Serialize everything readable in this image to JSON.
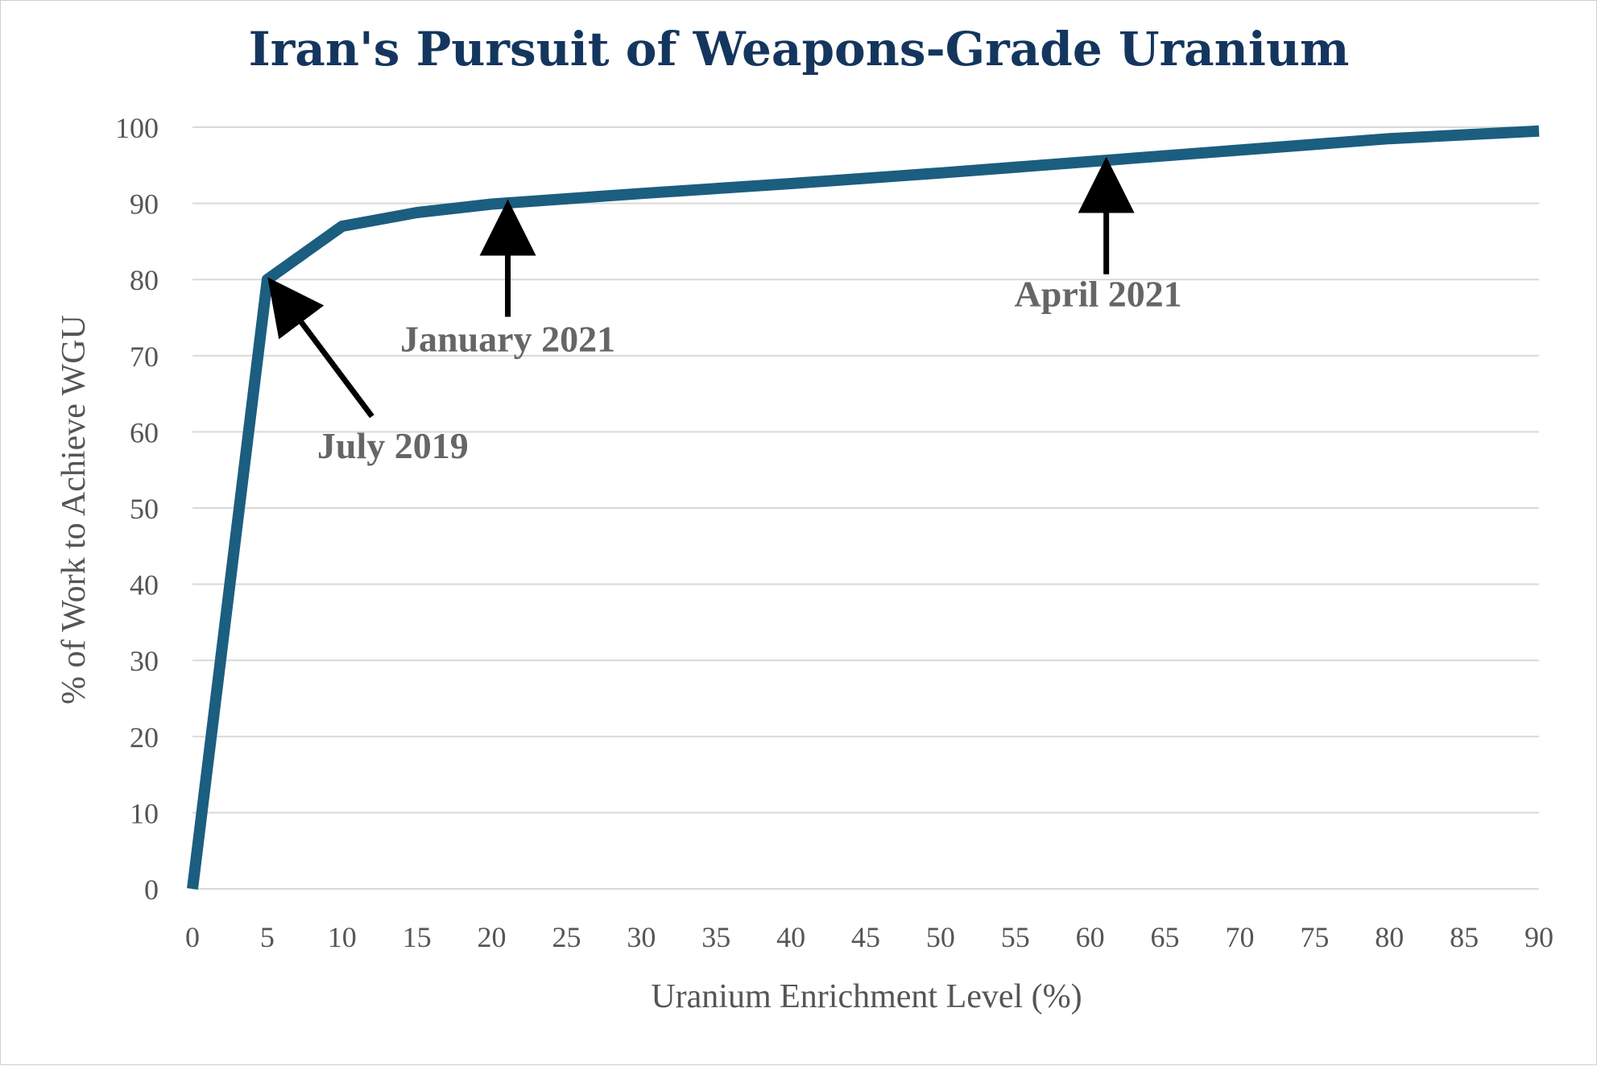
{
  "chart_data": {
    "type": "line",
    "title": "Iran's Pursuit of Weapons-Grade Uranium",
    "xlabel": "Uranium Enrichment Level (%)",
    "ylabel": "% of Work to Achieve WGU",
    "xlim": [
      0,
      90
    ],
    "ylim": [
      0,
      100
    ],
    "x_ticks": [
      "0",
      "5",
      "10",
      "15",
      "20",
      "25",
      "30",
      "35",
      "40",
      "45",
      "50",
      "55",
      "60",
      "65",
      "70",
      "75",
      "80",
      "85",
      "90"
    ],
    "y_ticks": [
      "0",
      "10",
      "20",
      "30",
      "40",
      "50",
      "60",
      "70",
      "80",
      "90",
      "100"
    ],
    "grid": "horizontal",
    "legend": "none",
    "line_color": "#1b5e80",
    "series": [
      {
        "x": [
          0,
          5,
          10,
          15,
          20,
          30,
          40,
          50,
          60,
          70,
          80,
          90
        ],
        "y": [
          0,
          80,
          87,
          88.8,
          89.9,
          91.3,
          92.6,
          94,
          95.5,
          97,
          98.5,
          99.5
        ]
      }
    ],
    "annotations": [
      {
        "text": "July 2019",
        "x": 5,
        "y": 80
      },
      {
        "text": "January 2021",
        "x": 20,
        "y": 89.9
      },
      {
        "text": "April 2021",
        "x": 60,
        "y": 95.5
      }
    ]
  }
}
